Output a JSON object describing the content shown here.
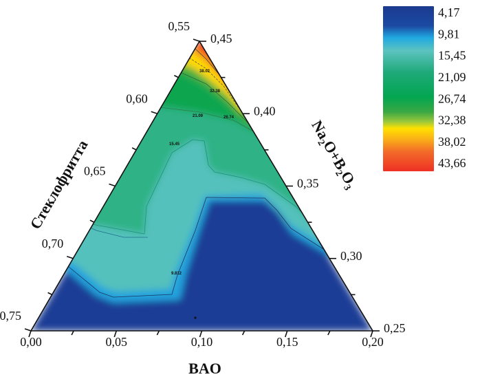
{
  "chart_data": {
    "type": "heatmap",
    "subtype": "ternary-contour",
    "axes": {
      "bottom": {
        "title": "BAO",
        "ticks": [
          "0,00",
          "0,05",
          "0,10",
          "0,15",
          "0,20"
        ],
        "values": [
          0.0,
          0.05,
          0.1,
          0.15,
          0.2
        ],
        "range": [
          0.0,
          0.2
        ]
      },
      "left": {
        "title": "Стеклофритта",
        "ticks": [
          "0,55",
          "0,60",
          "0,65",
          "0,70",
          "0,75"
        ],
        "values": [
          0.55,
          0.6,
          0.65,
          0.7,
          0.75
        ],
        "range": [
          0.55,
          0.75
        ]
      },
      "right": {
        "title_parts": [
          "Na",
          "2",
          "O+B",
          "2",
          "O",
          "3"
        ],
        "title": "Na2O+B2O3",
        "ticks": [
          "0,45",
          "0,40",
          "0,35",
          "0,30",
          "0,25"
        ],
        "values": [
          0.45,
          0.4,
          0.35,
          0.3,
          0.25
        ],
        "range": [
          0.45,
          0.25
        ]
      }
    },
    "colorbar": {
      "levels": [
        "4,17",
        "9,81",
        "15,45",
        "21,09",
        "26,74",
        "32,38",
        "38,02",
        "43,66"
      ],
      "level_values": [
        4.17,
        9.81,
        15.45,
        21.09,
        26.74,
        32.38,
        38.02,
        43.66
      ],
      "colors": [
        "#1b3d93",
        "#1fa8e0",
        "#55c2bd",
        "#0ca650",
        "#35a843",
        "#ffdd00",
        "#f47b20",
        "#ee3124"
      ],
      "placement": "top-right"
    },
    "contour_labels": [
      "38.02",
      "32.38",
      "21.09",
      "26.74",
      "15.45",
      "9.812"
    ]
  }
}
